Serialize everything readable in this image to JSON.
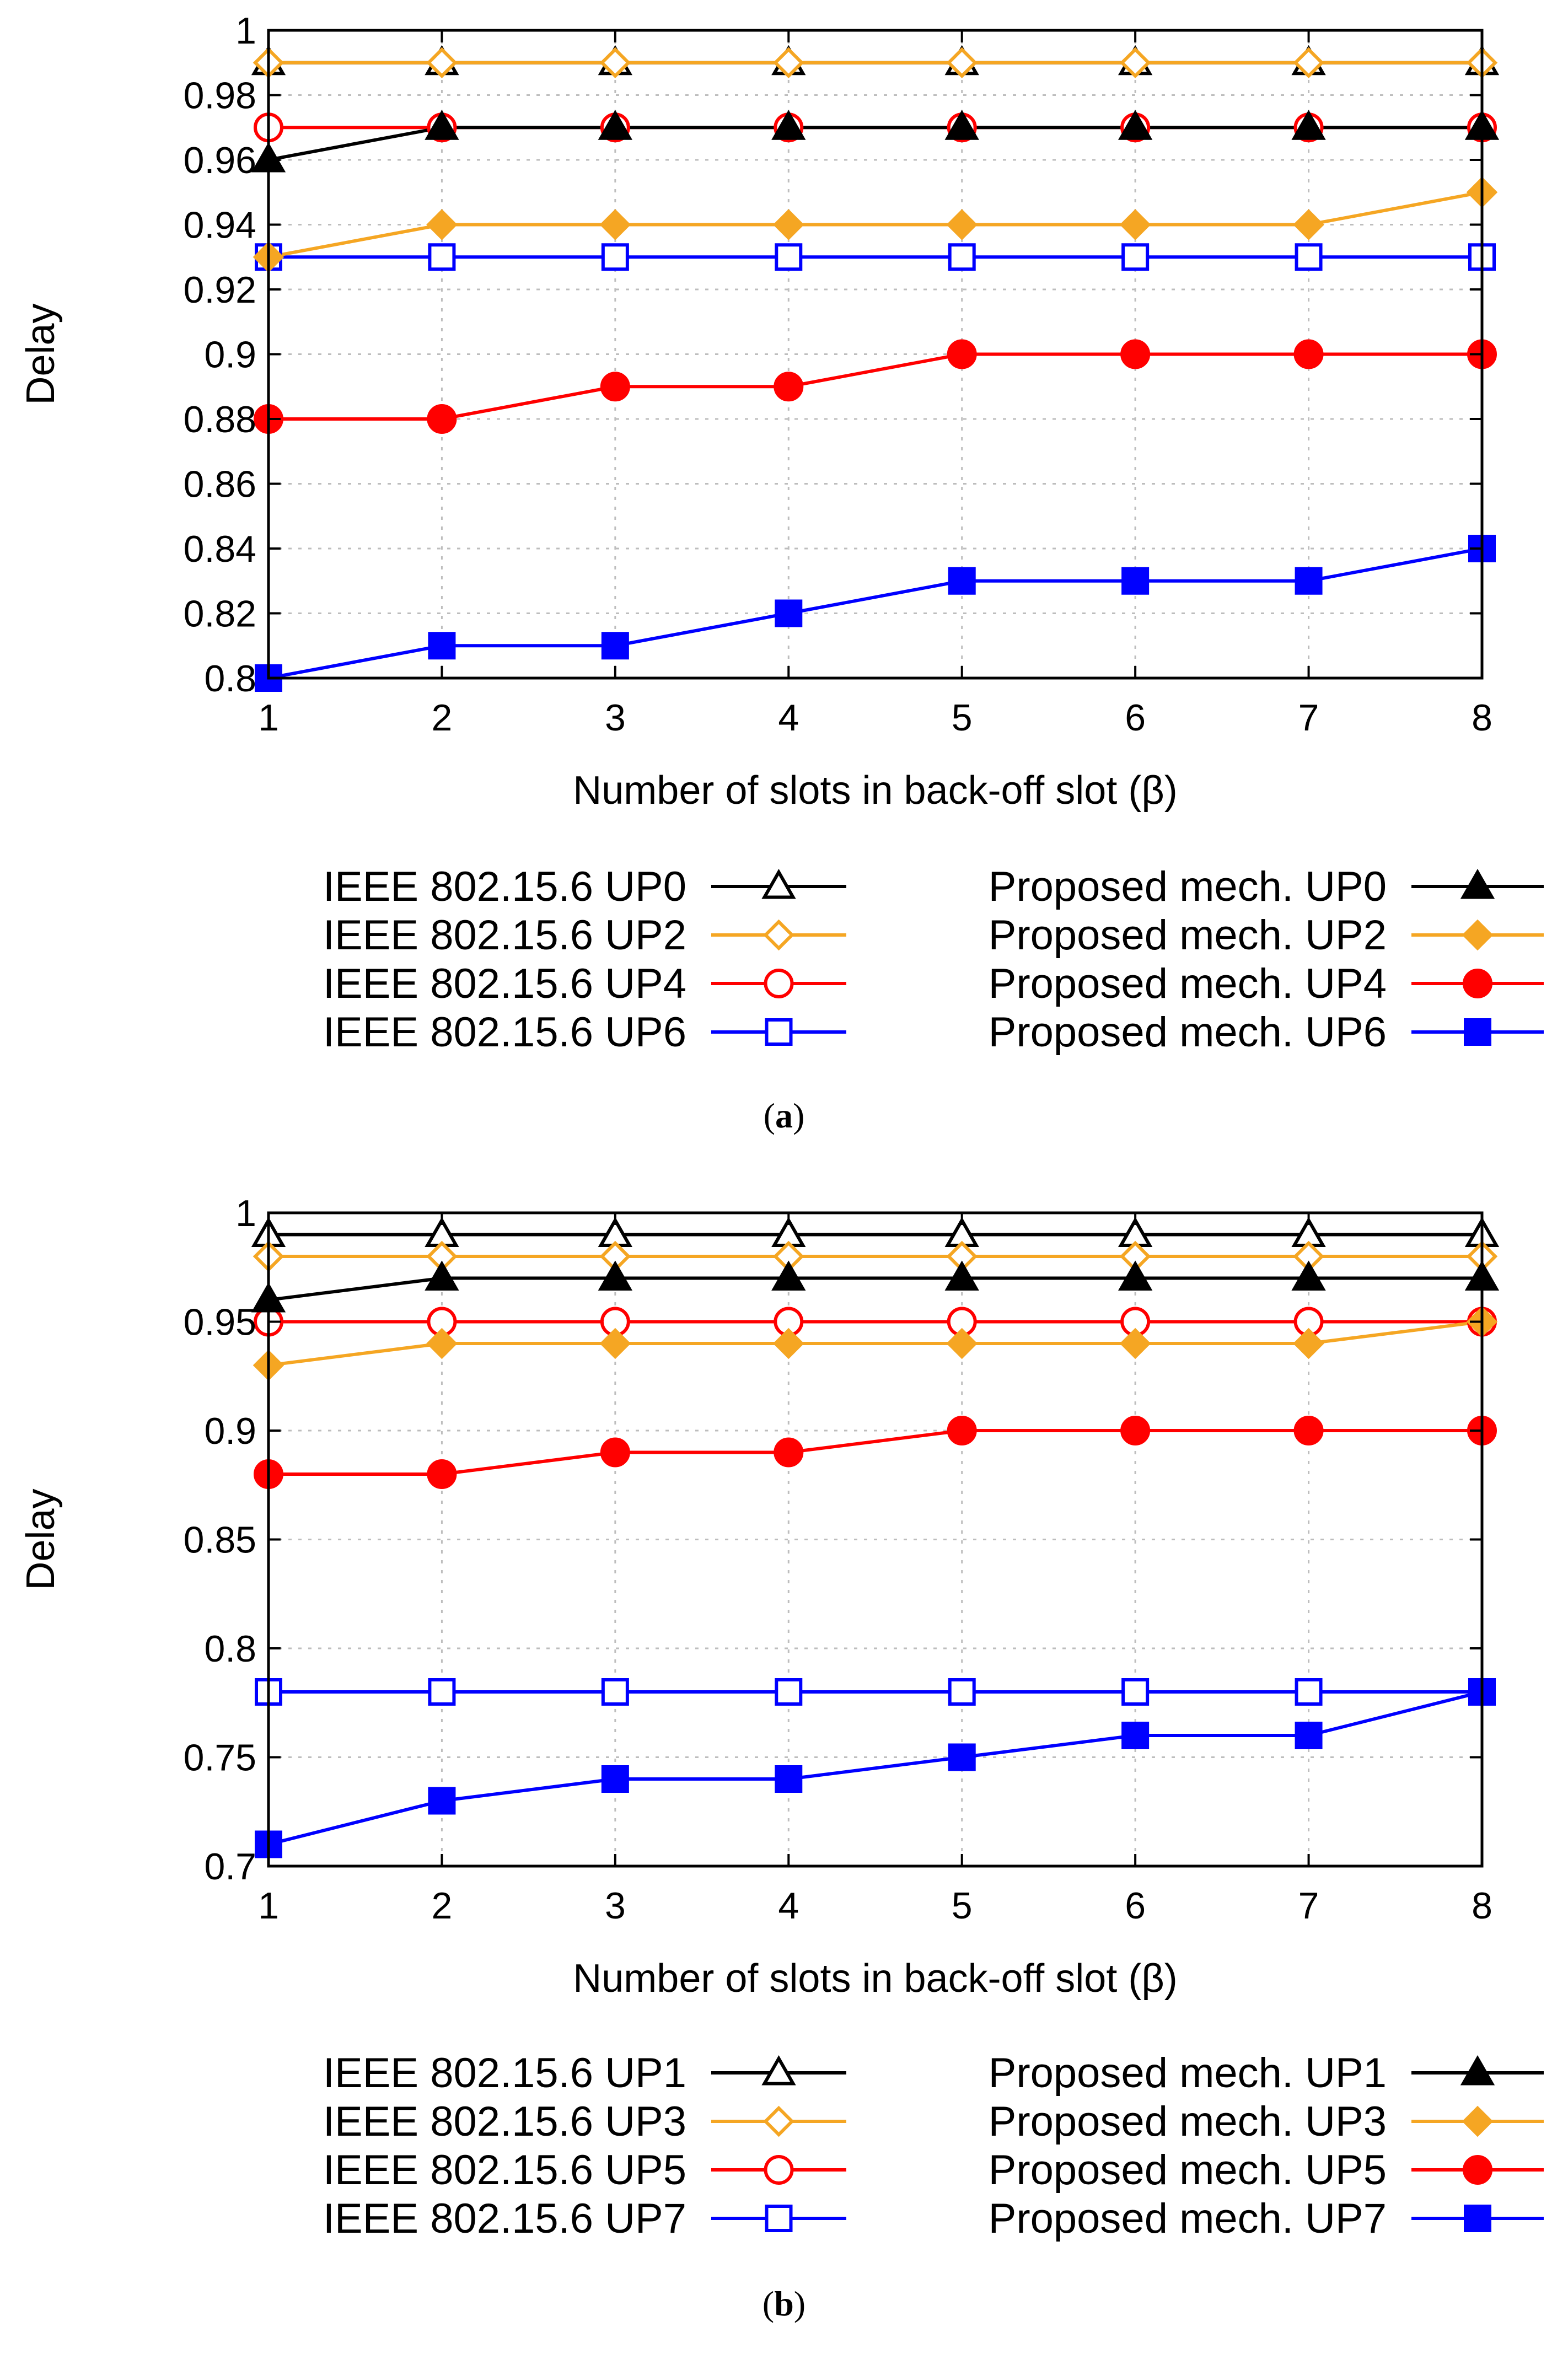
{
  "chart_data": [
    {
      "type": "line",
      "panel_label": "a",
      "xlabel": "Number of slots in back-off slot (β)",
      "ylabel": "Delay",
      "x": [
        1,
        2,
        3,
        4,
        5,
        6,
        7,
        8
      ],
      "xlim": [
        1,
        8
      ],
      "ylim": [
        0.8,
        1.0
      ],
      "xticks": [
        "1",
        "2",
        "3",
        "4",
        "5",
        "6",
        "7",
        "8"
      ],
      "yticks": [
        "0.8",
        "0.82",
        "0.84",
        "0.86",
        "0.88",
        "0.9",
        "0.92",
        "0.94",
        "0.96",
        "0.98",
        "1"
      ],
      "ytick_values": [
        0.8,
        0.82,
        0.84,
        0.86,
        0.88,
        0.9,
        0.92,
        0.94,
        0.96,
        0.98,
        1.0
      ],
      "grid": true,
      "series": [
        {
          "name": "IEEE 802.15.6 UP0",
          "color": "#000000",
          "marker": "triangle-open",
          "values": [
            0.99,
            0.99,
            0.99,
            0.99,
            0.99,
            0.99,
            0.99,
            0.99
          ]
        },
        {
          "name": "IEEE 802.15.6 UP2",
          "color": "#f5a623",
          "marker": "diamond-open",
          "values": [
            0.99,
            0.99,
            0.99,
            0.99,
            0.99,
            0.99,
            0.99,
            0.99
          ]
        },
        {
          "name": "IEEE 802.15.6 UP4",
          "color": "#ff0000",
          "marker": "circle-open",
          "values": [
            0.97,
            0.97,
            0.97,
            0.97,
            0.97,
            0.97,
            0.97,
            0.97
          ]
        },
        {
          "name": "IEEE 802.15.6 UP6",
          "color": "#0000ff",
          "marker": "square-open",
          "values": [
            0.93,
            0.93,
            0.93,
            0.93,
            0.93,
            0.93,
            0.93,
            0.93
          ]
        },
        {
          "name": "Proposed mech. UP0",
          "color": "#000000",
          "marker": "triangle-filled",
          "values": [
            0.96,
            0.97,
            0.97,
            0.97,
            0.97,
            0.97,
            0.97,
            0.97
          ]
        },
        {
          "name": "Proposed mech. UP2",
          "color": "#f5a623",
          "marker": "diamond-filled",
          "values": [
            0.93,
            0.94,
            0.94,
            0.94,
            0.94,
            0.94,
            0.94,
            0.95
          ]
        },
        {
          "name": "Proposed mech. UP4",
          "color": "#ff0000",
          "marker": "circle-filled",
          "values": [
            0.88,
            0.88,
            0.89,
            0.89,
            0.9,
            0.9,
            0.9,
            0.9
          ]
        },
        {
          "name": "Proposed mech. UP6",
          "color": "#0000ff",
          "marker": "square-filled",
          "values": [
            0.8,
            0.81,
            0.81,
            0.82,
            0.83,
            0.83,
            0.83,
            0.84
          ]
        }
      ]
    },
    {
      "type": "line",
      "panel_label": "b",
      "xlabel": "Number of slots in back-off slot (β)",
      "ylabel": "Delay",
      "x": [
        1,
        2,
        3,
        4,
        5,
        6,
        7,
        8
      ],
      "xlim": [
        1,
        8
      ],
      "ylim": [
        0.7,
        1.0
      ],
      "xticks": [
        "1",
        "2",
        "3",
        "4",
        "5",
        "6",
        "7",
        "8"
      ],
      "yticks": [
        "0.7",
        "0.75",
        "0.8",
        "0.85",
        "0.9",
        "0.95",
        "1"
      ],
      "ytick_values": [
        0.7,
        0.75,
        0.8,
        0.85,
        0.9,
        0.95,
        1.0
      ],
      "grid": true,
      "series": [
        {
          "name": "IEEE 802.15.6 UP1",
          "color": "#000000",
          "marker": "triangle-open",
          "values": [
            0.99,
            0.99,
            0.99,
            0.99,
            0.99,
            0.99,
            0.99,
            0.99
          ]
        },
        {
          "name": "IEEE 802.15.6 UP3",
          "color": "#f5a623",
          "marker": "diamond-open",
          "values": [
            0.98,
            0.98,
            0.98,
            0.98,
            0.98,
            0.98,
            0.98,
            0.98
          ]
        },
        {
          "name": "IEEE 802.15.6 UP5",
          "color": "#ff0000",
          "marker": "circle-open",
          "values": [
            0.95,
            0.95,
            0.95,
            0.95,
            0.95,
            0.95,
            0.95,
            0.95
          ]
        },
        {
          "name": "IEEE 802.15.6 UP7",
          "color": "#0000ff",
          "marker": "square-open",
          "values": [
            0.78,
            0.78,
            0.78,
            0.78,
            0.78,
            0.78,
            0.78,
            0.78
          ]
        },
        {
          "name": "Proposed mech. UP1",
          "color": "#000000",
          "marker": "triangle-filled",
          "values": [
            0.96,
            0.97,
            0.97,
            0.97,
            0.97,
            0.97,
            0.97,
            0.97
          ]
        },
        {
          "name": "Proposed mech. UP3",
          "color": "#f5a623",
          "marker": "diamond-filled",
          "values": [
            0.93,
            0.94,
            0.94,
            0.94,
            0.94,
            0.94,
            0.94,
            0.95
          ]
        },
        {
          "name": "Proposed mech. UP5",
          "color": "#ff0000",
          "marker": "circle-filled",
          "values": [
            0.88,
            0.88,
            0.89,
            0.89,
            0.9,
            0.9,
            0.9,
            0.9
          ]
        },
        {
          "name": "Proposed mech. UP7",
          "color": "#0000ff",
          "marker": "square-filled",
          "values": [
            0.71,
            0.73,
            0.74,
            0.74,
            0.75,
            0.76,
            0.76,
            0.78
          ]
        }
      ]
    }
  ]
}
